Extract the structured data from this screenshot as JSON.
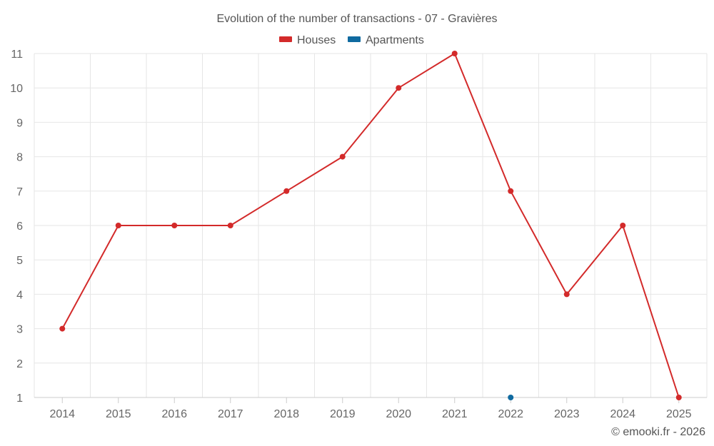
{
  "chart_data": {
    "type": "line",
    "title": "Evolution of the number of transactions - 07 - Gravières",
    "categories": [
      "2014",
      "2015",
      "2016",
      "2017",
      "2018",
      "2019",
      "2020",
      "2021",
      "2022",
      "2023",
      "2024",
      "2025"
    ],
    "series": [
      {
        "name": "Houses",
        "color": "#d32a2a",
        "values": [
          3,
          6,
          6,
          6,
          7,
          8,
          10,
          11,
          7,
          4,
          6,
          1
        ]
      },
      {
        "name": "Apartments",
        "color": "#0f6aa0",
        "values": [
          null,
          null,
          null,
          null,
          null,
          null,
          null,
          null,
          1,
          null,
          null,
          null
        ]
      }
    ],
    "y_ticks": [
      1,
      2,
      3,
      4,
      5,
      6,
      7,
      8,
      9,
      10,
      11
    ],
    "ylim": [
      1,
      11
    ],
    "xlabel": "",
    "ylabel": "",
    "grid": true,
    "legend_position": "top-center"
  },
  "credit": "© emooki.fr - 2026"
}
